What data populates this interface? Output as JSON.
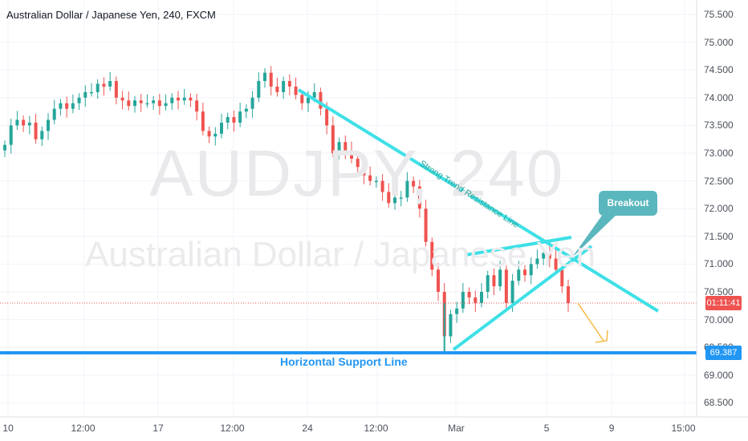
{
  "header": {
    "title": "Australian Dollar / Japanese Yen, 240, FXCM"
  },
  "watermark": {
    "symbol": "AUDJPY, 240",
    "name": "Australian Dollar / Japanese Yen"
  },
  "price_axis": {
    "ticks": [
      "75.500",
      "75.000",
      "74.500",
      "74.000",
      "73.500",
      "73.000",
      "72.500",
      "72.000",
      "71.500",
      "71.000",
      "70.500",
      "70.000",
      "69.500",
      "69.000",
      "68.500"
    ]
  },
  "time_axis": {
    "ticks": [
      "10",
      "12:00",
      "17",
      "12:00",
      "24",
      "12:00",
      "Mar",
      "5",
      "9",
      "15:00"
    ]
  },
  "badges": {
    "current_time": "01:11:41",
    "support_price": "69.387"
  },
  "annotations": {
    "support_label": "Horizontal Support Line",
    "resistance_label": "Strong Trend Resistance Line",
    "breakout_label": "Breakout"
  },
  "colors": {
    "up": "#26a69a",
    "down": "#ef5350",
    "support": "#2196f3",
    "trend": "#3ee0e6",
    "projection": "#f5b942"
  },
  "chart_data": {
    "type": "candlestick",
    "title": "Australian Dollar / Japanese Yen, 240, FXCM",
    "ylim": [
      68.2,
      75.8
    ],
    "support_level": 69.387,
    "close_series": [
      73.15,
      73.5,
      73.6,
      73.5,
      73.55,
      73.25,
      73.4,
      73.6,
      73.8,
      73.9,
      73.8,
      73.9,
      74.0,
      74.1,
      74.1,
      74.25,
      74.2,
      74.3,
      74.0,
      73.95,
      73.85,
      73.95,
      73.9,
      73.9,
      73.95,
      73.85,
      73.9,
      74.0,
      73.95,
      74.0,
      73.95,
      73.75,
      73.4,
      73.3,
      73.35,
      73.55,
      73.65,
      73.55,
      73.75,
      73.8,
      74.0,
      74.3,
      74.45,
      74.2,
      74.1,
      74.3,
      74.2,
      74.05,
      73.9,
      74.0,
      74.1,
      73.8,
      73.5,
      73.0,
      73.2,
      73.05,
      72.9,
      72.75,
      72.6,
      72.5,
      72.5,
      72.3,
      72.1,
      72.2,
      72.2,
      72.5,
      72.4,
      72.0,
      71.4,
      70.9,
      70.5,
      69.7,
      70.1,
      70.2,
      70.5,
      70.4,
      70.3,
      70.5,
      70.8,
      70.6,
      70.9,
      70.3,
      70.7,
      70.9,
      70.8,
      71.0,
      71.1,
      71.2,
      71.1,
      70.9,
      70.6,
      70.3
    ]
  }
}
